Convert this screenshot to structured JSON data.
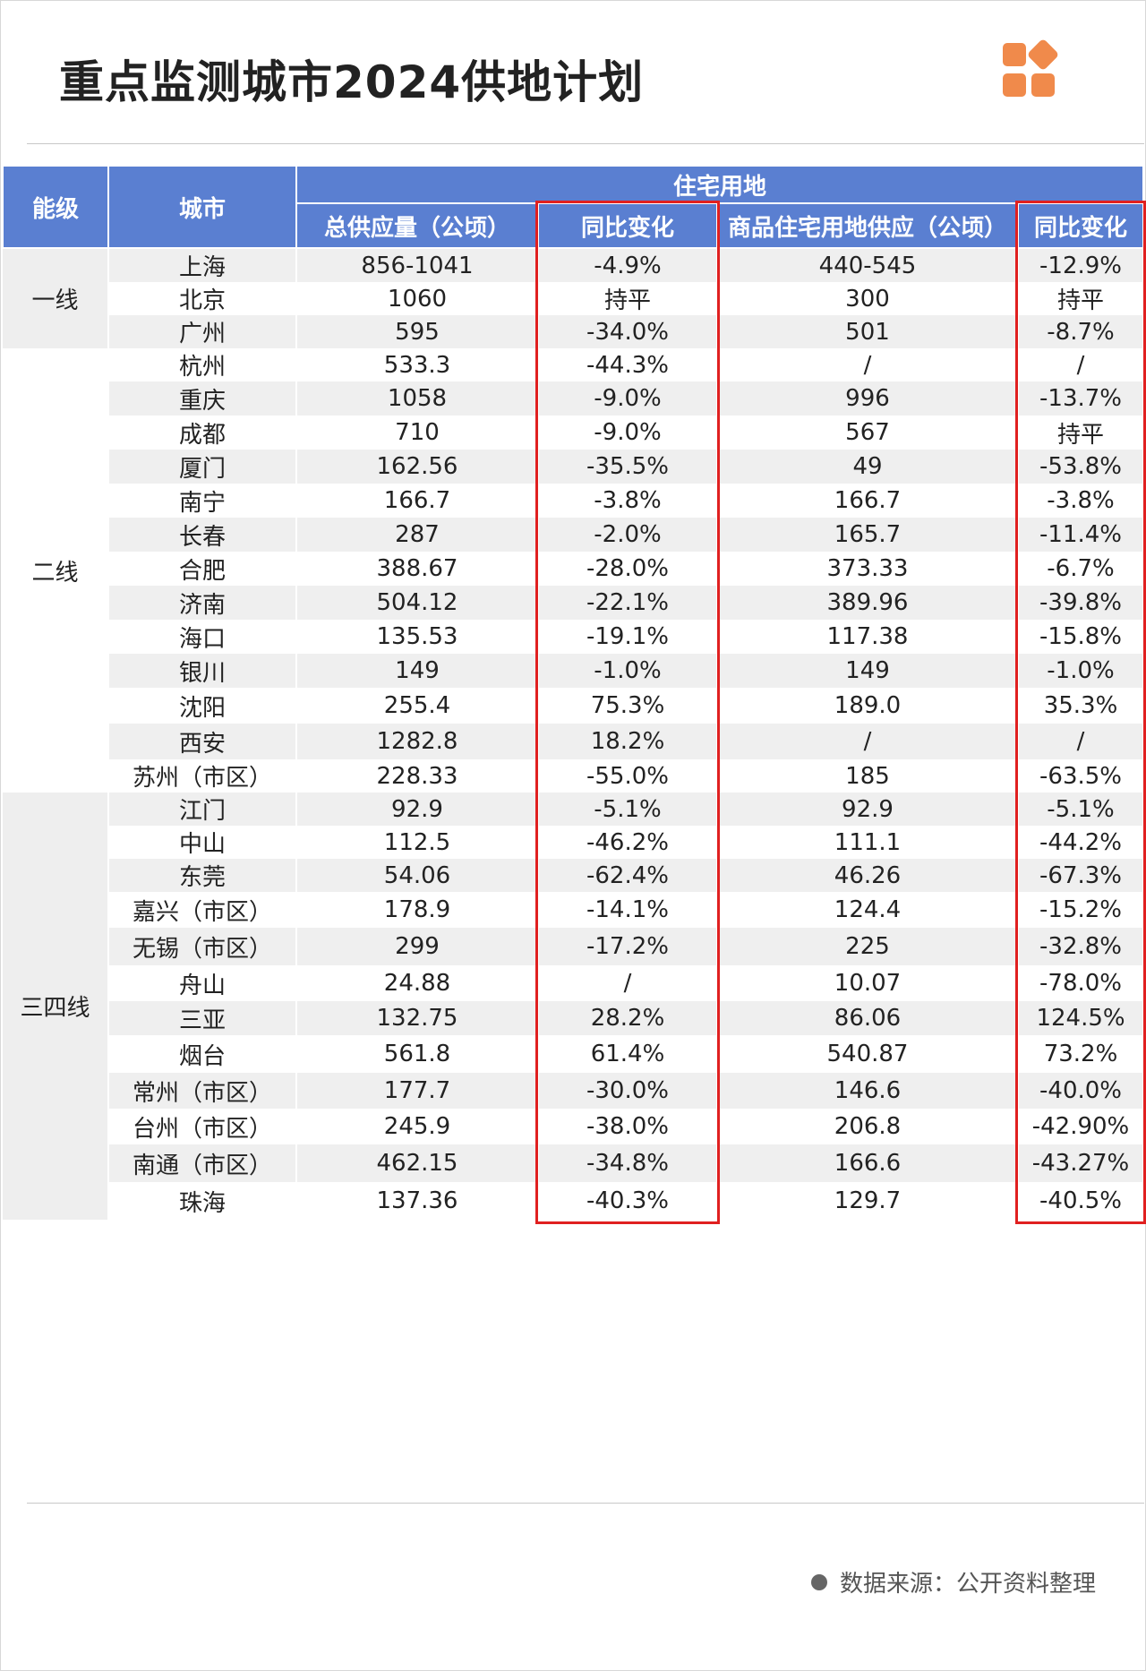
{
  "title": "重点监测城市2024供地计划",
  "colors": {
    "header_bg": "#5a7fd1",
    "accent_orange": "#f08a4b",
    "highlight_red": "#e02020"
  },
  "table": {
    "headers": {
      "tier": "能级",
      "city": "城市",
      "group": "住宅用地",
      "total_supply": "总供应量（公顷）",
      "yoy_total": "同比变化",
      "commercial_supply": "商品住宅用地供应（公顷）",
      "yoy_commercial": "同比变化"
    },
    "tiers": {
      "tier1": "一线",
      "tier2": "二线",
      "tier3": "三四线"
    },
    "rows": [
      {
        "city": "上海",
        "total": "856-1041",
        "yoy_total": "-4.9%",
        "commercial": "440-545",
        "yoy_commercial": "-12.9%"
      },
      {
        "city": "北京",
        "total": "1060",
        "yoy_total": "持平",
        "commercial": "300",
        "yoy_commercial": "持平"
      },
      {
        "city": "广州",
        "total": "595",
        "yoy_total": "-34.0%",
        "commercial": "501",
        "yoy_commercial": "-8.7%"
      },
      {
        "city": "杭州",
        "total": "533.3",
        "yoy_total": "-44.3%",
        "commercial": "/",
        "yoy_commercial": "/"
      },
      {
        "city": "重庆",
        "total": "1058",
        "yoy_total": "-9.0%",
        "commercial": "996",
        "yoy_commercial": "-13.7%"
      },
      {
        "city": "成都",
        "total": "710",
        "yoy_total": "-9.0%",
        "commercial": "567",
        "yoy_commercial": "持平"
      },
      {
        "city": "厦门",
        "total": "162.56",
        "yoy_total": "-35.5%",
        "commercial": "49",
        "yoy_commercial": "-53.8%"
      },
      {
        "city": "南宁",
        "total": "166.7",
        "yoy_total": "-3.8%",
        "commercial": "166.7",
        "yoy_commercial": "-3.8%"
      },
      {
        "city": "长春",
        "total": "287",
        "yoy_total": "-2.0%",
        "commercial": "165.7",
        "yoy_commercial": "-11.4%"
      },
      {
        "city": "合肥",
        "total": "388.67",
        "yoy_total": "-28.0%",
        "commercial": "373.33",
        "yoy_commercial": "-6.7%"
      },
      {
        "city": "济南",
        "total": "504.12",
        "yoy_total": "-22.1%",
        "commercial": "389.96",
        "yoy_commercial": "-39.8%"
      },
      {
        "city": "海口",
        "total": "135.53",
        "yoy_total": "-19.1%",
        "commercial": "117.38",
        "yoy_commercial": "-15.8%"
      },
      {
        "city": "银川",
        "total": "149",
        "yoy_total": "-1.0%",
        "commercial": "149",
        "yoy_commercial": "-1.0%"
      },
      {
        "city": "沈阳",
        "total": "255.4",
        "yoy_total": "75.3%",
        "commercial": "189.0",
        "yoy_commercial": "35.3%"
      },
      {
        "city": "西安",
        "total": "1282.8",
        "yoy_total": "18.2%",
        "commercial": "/",
        "yoy_commercial": "/"
      },
      {
        "city": "苏州（市区）",
        "total": "228.33",
        "yoy_total": "-55.0%",
        "commercial": "185",
        "yoy_commercial": "-63.5%"
      },
      {
        "city": "江门",
        "total": "92.9",
        "yoy_total": "-5.1%",
        "commercial": "92.9",
        "yoy_commercial": "-5.1%"
      },
      {
        "city": "中山",
        "total": "112.5",
        "yoy_total": "-46.2%",
        "commercial": "111.1",
        "yoy_commercial": "-44.2%"
      },
      {
        "city": "东莞",
        "total": "54.06",
        "yoy_total": "-62.4%",
        "commercial": "46.26",
        "yoy_commercial": "-67.3%"
      },
      {
        "city": "嘉兴（市区）",
        "total": "178.9",
        "yoy_total": "-14.1%",
        "commercial": "124.4",
        "yoy_commercial": "-15.2%"
      },
      {
        "city": "无锡（市区）",
        "total": "299",
        "yoy_total": "-17.2%",
        "commercial": "225",
        "yoy_commercial": "-32.8%"
      },
      {
        "city": "舟山",
        "total": "24.88",
        "yoy_total": "/",
        "commercial": "10.07",
        "yoy_commercial": "-78.0%"
      },
      {
        "city": "三亚",
        "total": "132.75",
        "yoy_total": "28.2%",
        "commercial": "86.06",
        "yoy_commercial": "124.5%"
      },
      {
        "city": "烟台",
        "total": "561.8",
        "yoy_total": "61.4%",
        "commercial": "540.87",
        "yoy_commercial": "73.2%"
      },
      {
        "city": "常州（市区）",
        "total": "177.7",
        "yoy_total": "-30.0%",
        "commercial": "146.6",
        "yoy_commercial": "-40.0%"
      },
      {
        "city": "台州（市区）",
        "total": "245.9",
        "yoy_total": "-38.0%",
        "commercial": "206.8",
        "yoy_commercial": "-42.90%"
      },
      {
        "city": "南通（市区）",
        "total": "462.15",
        "yoy_total": "-34.8%",
        "commercial": "166.6",
        "yoy_commercial": "-43.27%"
      },
      {
        "city": "珠海",
        "total": "137.36",
        "yoy_total": "-40.3%",
        "commercial": "129.7",
        "yoy_commercial": "-40.5%"
      }
    ]
  },
  "source": "数据来源：公开资料整理"
}
